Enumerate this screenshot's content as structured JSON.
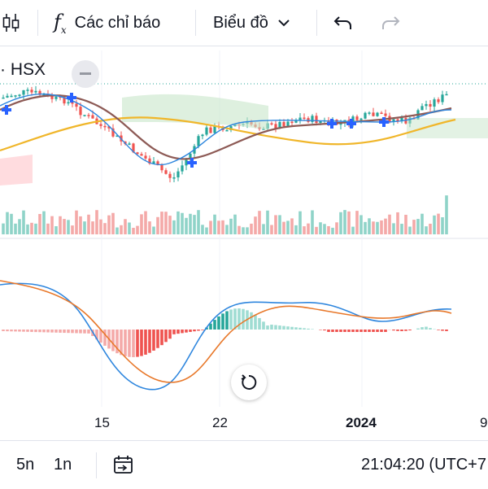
{
  "toolbar": {
    "indicators_label": "Các chỉ báo",
    "chart_type_label": "Biểu đồ"
  },
  "symbol": {
    "label": "· HSX"
  },
  "xaxis": {
    "ticks": [
      "15",
      "22",
      "2024",
      "9"
    ]
  },
  "bottom": {
    "range_5n": "5n",
    "range_1n": "1n",
    "time": "21:04:20 (UTC+7"
  },
  "colors": {
    "up": "#26a69a",
    "down": "#ef5350",
    "ma_slow": "#f0b62a",
    "ma_fast": "#8d5a55",
    "macd": "#2e86de",
    "signal": "#e8782a",
    "cloud_up": "#c8e6c9",
    "cloud_down": "#ffcdd2"
  }
}
